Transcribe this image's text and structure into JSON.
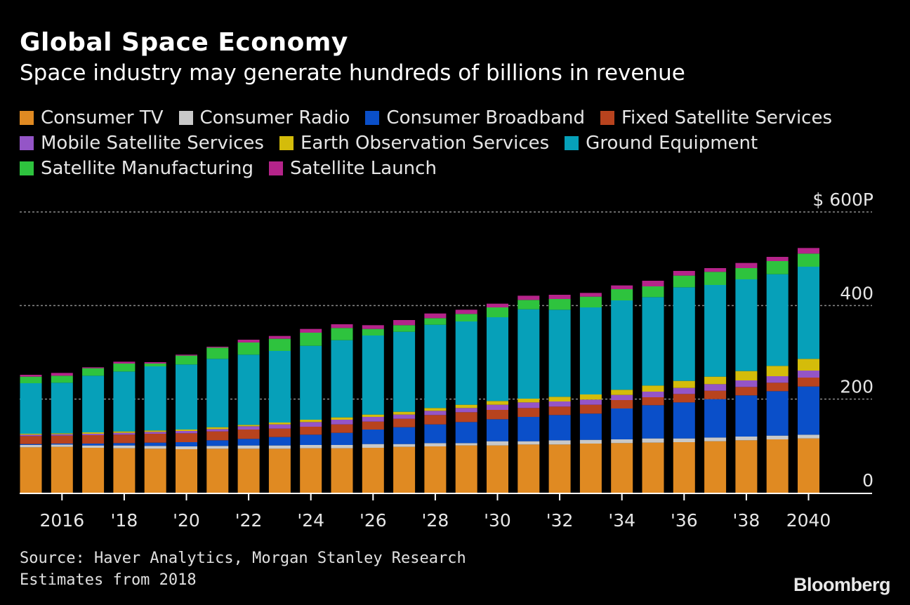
{
  "header": {
    "title": "Global Space Economy",
    "subtitle": "Space industry may generate hundreds of billions in revenue"
  },
  "footer": {
    "source": "Source: Haver Analytics, Morgan Stanley Research",
    "note": "Estimates from 2018",
    "logo": "Bloomberg"
  },
  "chart_data": {
    "type": "bar",
    "stacked": true,
    "title": "Global Space Economy",
    "subtitle": "Space industry may generate hundreds of billions in revenue",
    "x": [
      2015,
      2016,
      2017,
      2018,
      2019,
      2020,
      2021,
      2022,
      2023,
      2024,
      2025,
      2026,
      2027,
      2028,
      2029,
      2030,
      2031,
      2032,
      2033,
      2034,
      2035,
      2036,
      2037,
      2038,
      2039,
      2040
    ],
    "x_tick_values": [
      2016,
      2018,
      2020,
      2022,
      2024,
      2026,
      2028,
      2030,
      2032,
      2034,
      2036,
      2038,
      2040
    ],
    "x_tick_labels": [
      "2016",
      "'18",
      "'20",
      "'22",
      "'24",
      "'26",
      "'28",
      "'30",
      "'32",
      "'34",
      "'36",
      "'38",
      "2040"
    ],
    "ylim": [
      0,
      600
    ],
    "y_ticks": [
      0,
      200,
      400,
      600
    ],
    "y_tick_labels": [
      "0",
      "200",
      "400",
      "$ 600P"
    ],
    "grid": true,
    "legend_position": "top",
    "series": [
      {
        "name": "Consumer TV",
        "color": "#E08A22",
        "values": [
          97,
          98,
          96,
          95,
          94,
          93,
          94,
          94,
          94,
          95,
          95,
          96,
          98,
          99,
          101,
          101,
          103,
          103,
          105,
          106,
          107,
          108,
          110,
          112,
          114,
          116
        ]
      },
      {
        "name": "Consumer Radio",
        "color": "#C8C8C8",
        "values": [
          5,
          5,
          5,
          6,
          6,
          6,
          6,
          7,
          7,
          7,
          7,
          8,
          6,
          7,
          5,
          9,
          7,
          9,
          8,
          8,
          9,
          8,
          8,
          8,
          8,
          8
        ]
      },
      {
        "name": "Consumer Broadband",
        "color": "#0A4FC9",
        "values": [
          2,
          2,
          4,
          5,
          7,
          9,
          12,
          14,
          18,
          22,
          26,
          31,
          36,
          40,
          45,
          47,
          52,
          54,
          56,
          66,
          71,
          77,
          82,
          88,
          95,
          103
        ]
      },
      {
        "name": "Fixed Satellite Services",
        "color": "#B8431E",
        "values": [
          17,
          17,
          18,
          18,
          19,
          19,
          19,
          20,
          18,
          17,
          18,
          17,
          18,
          20,
          21,
          20,
          19,
          18,
          19,
          18,
          17,
          18,
          18,
          18,
          18,
          19
        ]
      },
      {
        "name": "Mobile Satellite Services",
        "color": "#9455C7",
        "values": [
          3,
          3,
          3,
          4,
          4,
          5,
          5,
          7,
          9,
          10,
          10,
          10,
          9,
          9,
          9,
          11,
          12,
          11,
          11,
          11,
          12,
          13,
          14,
          14,
          14,
          15
        ]
      },
      {
        "name": "Earth Observation Services",
        "color": "#D4BC0A",
        "values": [
          2,
          2,
          3,
          3,
          3,
          3,
          4,
          3,
          4,
          5,
          5,
          5,
          6,
          6,
          7,
          8,
          8,
          10,
          11,
          11,
          13,
          15,
          16,
          20,
          22,
          25
        ]
      },
      {
        "name": "Ground Equipment",
        "color": "#06A0B9",
        "values": [
          108,
          108,
          121,
          128,
          137,
          139,
          146,
          150,
          153,
          158,
          165,
          169,
          171,
          178,
          178,
          179,
          191,
          186,
          186,
          191,
          189,
          200,
          196,
          196,
          196,
          197
        ]
      },
      {
        "name": "Satellite Manufacturing",
        "color": "#2EC33E",
        "values": [
          14,
          15,
          16,
          17,
          6,
          19,
          24,
          26,
          26,
          28,
          26,
          14,
          14,
          14,
          16,
          21,
          20,
          23,
          23,
          24,
          23,
          25,
          28,
          24,
          28,
          28
        ]
      },
      {
        "name": "Satellite Launch",
        "color": "#B5248A",
        "values": [
          4,
          6,
          2,
          4,
          3,
          2,
          2,
          6,
          6,
          8,
          8,
          8,
          11,
          10,
          9,
          8,
          9,
          9,
          8,
          8,
          12,
          10,
          8,
          11,
          9,
          12
        ]
      }
    ]
  }
}
